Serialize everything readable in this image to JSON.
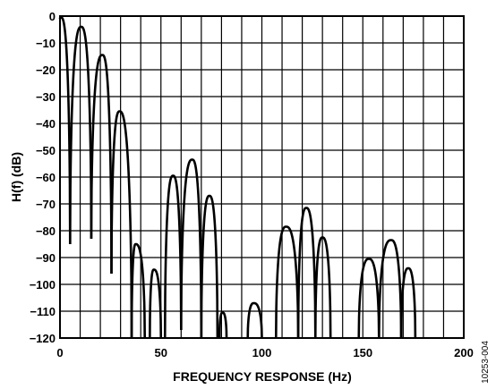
{
  "chart_data": {
    "type": "line",
    "xlabel": "FREQUENCY RESPONSE (Hz)",
    "ylabel": "H(f) (dB)",
    "xlim": [
      0,
      200
    ],
    "ylim": [
      -120,
      0
    ],
    "x_ticks": [
      0,
      50,
      100,
      150,
      200
    ],
    "y_ticks": [
      0,
      -10,
      -20,
      -30,
      -40,
      -50,
      -60,
      -70,
      -80,
      -90,
      -100,
      -110,
      -120
    ],
    "grid": true,
    "figure_id": "10253-004",
    "series": [
      {
        "color": "#000000",
        "lobes": [
          {
            "from": 0,
            "to": 5,
            "peak_x": 0.5,
            "peak_y": -0.5,
            "left_y": -1,
            "right_y": -85
          },
          {
            "from": 5,
            "to": 15.5,
            "peak_x": 10.5,
            "peak_y": -4,
            "left_y": -85,
            "right_y": -83
          },
          {
            "from": 15.5,
            "to": 25.5,
            "peak_x": 21,
            "peak_y": -14.5,
            "left_y": -83,
            "right_y": -96
          },
          {
            "from": 25.5,
            "to": 35.5,
            "peak_x": 29.5,
            "peak_y": -35.5,
            "left_y": -96,
            "right_y": -120
          },
          {
            "from": 35.5,
            "to": 42,
            "peak_x": 37.5,
            "peak_y": -85,
            "left_y": -120,
            "right_y": -120
          },
          {
            "from": 44.5,
            "to": 50,
            "peak_x": 46.5,
            "peak_y": -94.5,
            "left_y": -120,
            "right_y": -120
          },
          {
            "from": 52,
            "to": 60,
            "peak_x": 56,
            "peak_y": -59.5,
            "left_y": -120,
            "right_y": -117
          },
          {
            "from": 60,
            "to": 70,
            "peak_x": 65.5,
            "peak_y": -53.5,
            "left_y": -117,
            "right_y": -120
          },
          {
            "from": 70,
            "to": 78,
            "peak_x": 74,
            "peak_y": -67,
            "left_y": -120,
            "right_y": -120
          },
          {
            "from": 79,
            "to": 82.5,
            "peak_x": 80.5,
            "peak_y": -110.5,
            "left_y": -120,
            "right_y": -120
          },
          {
            "from": 93,
            "to": 100,
            "peak_x": 96,
            "peak_y": -107,
            "left_y": -120,
            "right_y": -120
          },
          {
            "from": 107,
            "to": 118,
            "peak_x": 112,
            "peak_y": -78.5,
            "left_y": -120,
            "right_y": -120
          },
          {
            "from": 118,
            "to": 126.5,
            "peak_x": 122,
            "peak_y": -71.5,
            "left_y": -120,
            "right_y": -120
          },
          {
            "from": 126.5,
            "to": 134,
            "peak_x": 130,
            "peak_y": -82.5,
            "left_y": -120,
            "right_y": -120
          },
          {
            "from": 148,
            "to": 158,
            "peak_x": 153,
            "peak_y": -90.5,
            "left_y": -120,
            "right_y": -120
          },
          {
            "from": 158,
            "to": 169,
            "peak_x": 164,
            "peak_y": -83.5,
            "left_y": -120,
            "right_y": -120
          },
          {
            "from": 169,
            "to": 176,
            "peak_x": 172.5,
            "peak_y": -94,
            "left_y": -120,
            "right_y": -120
          }
        ]
      }
    ]
  }
}
